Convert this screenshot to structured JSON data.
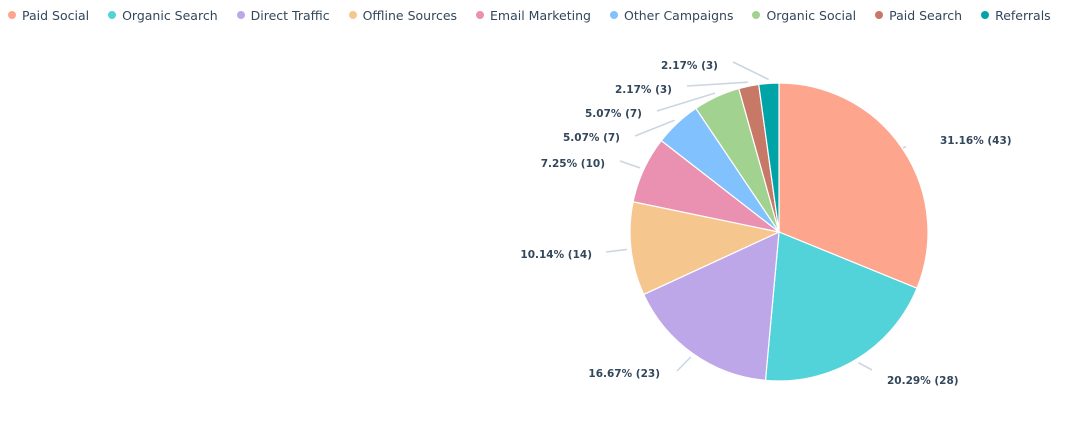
{
  "chart_data": {
    "type": "pie",
    "legend_position": "top-left",
    "start_angle_deg": 0,
    "series": [
      {
        "name": "Paid Social",
        "count": 43,
        "percent": "31.16%",
        "label": "31.16% (43)",
        "color": "#fea58e"
      },
      {
        "name": "Organic Search",
        "count": 28,
        "percent": "20.29%",
        "label": "20.29% (28)",
        "color": "#51d3d9"
      },
      {
        "name": "Direct Traffic",
        "count": 23,
        "percent": "16.67%",
        "label": "16.67% (23)",
        "color": "#bda7e8"
      },
      {
        "name": "Offline Sources",
        "count": 14,
        "percent": "10.14%",
        "label": "10.14% (14)",
        "color": "#f5c78e"
      },
      {
        "name": "Email Marketing",
        "count": 10,
        "percent": "7.25%",
        "label": "7.25% (10)",
        "color": "#ea90b1"
      },
      {
        "name": "Other Campaigns",
        "count": 7,
        "percent": "5.07%",
        "label": "5.07% (7)",
        "color": "#81c1fd"
      },
      {
        "name": "Organic Social",
        "count": 7,
        "percent": "5.07%",
        "label": "5.07% (7)",
        "color": "#a2d28f"
      },
      {
        "name": "Paid Search",
        "count": 3,
        "percent": "2.17%",
        "label": "2.17% (3)",
        "color": "#c87866"
      },
      {
        "name": "Referrals",
        "count": 3,
        "percent": "2.17%",
        "label": "2.17% (3)",
        "color": "#00a4a6"
      }
    ]
  }
}
